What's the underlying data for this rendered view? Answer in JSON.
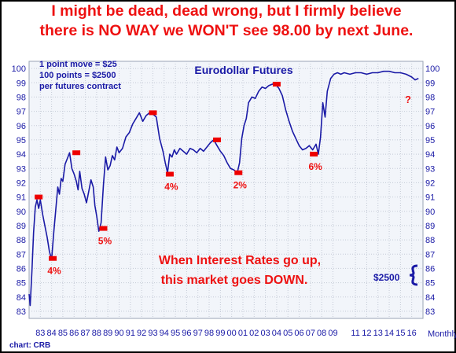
{
  "headline": {
    "line1": "I might be dead, dead wrong, but I firmly believe",
    "line2": "there is NO WAY we WON'T see 98.00 by next June."
  },
  "chart_data": {
    "type": "line",
    "title": "Eurodollar Futures",
    "notes": [
      "1 point move = $25",
      "100 points = $2500",
      "per futures contract"
    ],
    "annotation_main": [
      "When Interest Rates go up,",
      "this market goes  DOWN."
    ],
    "side_label": "$2500",
    "question_mark": "?",
    "source": "chart: CRB",
    "period_label": "Monthly",
    "ylim": [
      82.5,
      100.5
    ],
    "y_ticks": [
      83,
      84,
      85,
      86,
      87,
      88,
      89,
      90,
      91,
      92,
      93,
      94,
      95,
      96,
      97,
      98,
      99,
      100
    ],
    "xlim": [
      1982.0,
      2017.0
    ],
    "x_tick_labels": [
      {
        "x": 1983,
        "label": "83"
      },
      {
        "x": 1984,
        "label": "84"
      },
      {
        "x": 1985,
        "label": "85"
      },
      {
        "x": 1986,
        "label": "86"
      },
      {
        "x": 1987,
        "label": "87"
      },
      {
        "x": 1988,
        "label": "88"
      },
      {
        "x": 1989,
        "label": "89"
      },
      {
        "x": 1990,
        "label": "90"
      },
      {
        "x": 1991,
        "label": "91"
      },
      {
        "x": 1992,
        "label": "92"
      },
      {
        "x": 1993,
        "label": "93"
      },
      {
        "x": 1994,
        "label": "94"
      },
      {
        "x": 1995,
        "label": "95"
      },
      {
        "x": 1996,
        "label": "96"
      },
      {
        "x": 1997,
        "label": "97"
      },
      {
        "x": 1998,
        "label": "98"
      },
      {
        "x": 1999,
        "label": "99"
      },
      {
        "x": 2000,
        "label": "00"
      },
      {
        "x": 2001,
        "label": "01"
      },
      {
        "x": 2002,
        "label": "02"
      },
      {
        "x": 2003,
        "label": "03"
      },
      {
        "x": 2004,
        "label": "04"
      },
      {
        "x": 2005,
        "label": "05"
      },
      {
        "x": 2006,
        "label": "06"
      },
      {
        "x": 2007,
        "label": "07"
      },
      {
        "x": 2008,
        "label": "08"
      },
      {
        "x": 2009,
        "label": "09"
      },
      {
        "x": 2011,
        "label": "11"
      },
      {
        "x": 2012,
        "label": "12"
      },
      {
        "x": 2013,
        "label": "13"
      },
      {
        "x": 2014,
        "label": "14"
      },
      {
        "x": 2015,
        "label": "15"
      },
      {
        "x": 2016,
        "label": "16"
      }
    ],
    "series": [
      {
        "color": "#1a1aa6",
        "x": [
          1982.0,
          1982.1,
          1982.25,
          1982.4,
          1982.55,
          1982.7,
          1982.85,
          1983.0,
          1983.2,
          1983.4,
          1983.6,
          1983.8,
          1984.0,
          1984.2,
          1984.4,
          1984.55,
          1984.7,
          1984.85,
          1985.0,
          1985.2,
          1985.4,
          1985.6,
          1985.8,
          1986.0,
          1986.2,
          1986.35,
          1986.5,
          1986.7,
          1986.9,
          1987.1,
          1987.3,
          1987.5,
          1987.7,
          1987.85,
          1988.0,
          1988.2,
          1988.4,
          1988.6,
          1988.8,
          1989.0,
          1989.2,
          1989.4,
          1989.6,
          1989.8,
          1990.0,
          1990.3,
          1990.6,
          1990.9,
          1991.2,
          1991.5,
          1991.8,
          1992.1,
          1992.4,
          1992.7,
          1993.0,
          1993.3,
          1993.6,
          1993.9,
          1994.1,
          1994.3,
          1994.5,
          1994.7,
          1994.9,
          1995.1,
          1995.4,
          1995.7,
          1996.0,
          1996.3,
          1996.6,
          1996.9,
          1997.2,
          1997.5,
          1997.8,
          1998.1,
          1998.4,
          1998.7,
          1999.0,
          1999.3,
          1999.6,
          1999.9,
          2000.2,
          2000.5,
          2000.7,
          2000.9,
          2001.1,
          2001.3,
          2001.5,
          2001.8,
          2002.1,
          2002.4,
          2002.7,
          2003.0,
          2003.3,
          2003.6,
          2003.9,
          2004.2,
          2004.5,
          2004.8,
          2005.1,
          2005.4,
          2005.7,
          2006.0,
          2006.3,
          2006.6,
          2006.9,
          2007.2,
          2007.5,
          2007.7,
          2007.9,
          2008.1,
          2008.3,
          2008.5,
          2008.8,
          2009.1,
          2009.4,
          2009.7,
          2010.0,
          2010.5,
          2011.0,
          2011.5,
          2012.0,
          2012.5,
          2013.0,
          2013.5,
          2014.0,
          2014.5,
          2015.0,
          2015.5,
          2016.0,
          2016.3,
          2016.6
        ],
        "y": [
          84.2,
          83.4,
          85.8,
          88.5,
          90.3,
          90.8,
          90.2,
          90.8,
          89.8,
          89.0,
          88.2,
          87.2,
          86.6,
          88.6,
          90.4,
          91.7,
          91.2,
          92.3,
          92.1,
          93.3,
          93.7,
          94.1,
          93.0,
          92.6,
          92.1,
          91.5,
          92.8,
          91.6,
          91.2,
          90.6,
          91.4,
          92.2,
          91.7,
          90.4,
          89.7,
          88.6,
          89.2,
          91.8,
          93.8,
          92.9,
          93.2,
          93.9,
          93.6,
          94.5,
          94.1,
          94.4,
          95.2,
          95.5,
          96.1,
          96.5,
          96.9,
          96.3,
          96.7,
          96.9,
          96.8,
          96.6,
          95.1,
          94.2,
          93.4,
          92.7,
          94.0,
          93.8,
          94.3,
          94.0,
          94.4,
          94.2,
          94.0,
          94.4,
          94.3,
          94.1,
          94.4,
          94.2,
          94.5,
          94.8,
          95.0,
          94.6,
          94.2,
          93.9,
          93.4,
          93.0,
          92.9,
          92.7,
          93.4,
          95.1,
          96.0,
          96.5,
          97.6,
          98.0,
          97.9,
          98.4,
          98.7,
          98.6,
          98.8,
          98.9,
          98.9,
          98.6,
          98.1,
          97.1,
          96.3,
          95.6,
          95.1,
          94.6,
          94.3,
          94.4,
          94.6,
          94.3,
          94.7,
          94.0,
          95.2,
          97.6,
          96.6,
          98.4,
          99.3,
          99.6,
          99.7,
          99.6,
          99.7,
          99.6,
          99.7,
          99.7,
          99.6,
          99.7,
          99.7,
          99.8,
          99.8,
          99.7,
          99.7,
          99.6,
          99.4,
          99.2,
          99.3
        ]
      }
    ],
    "markers": [
      {
        "x": 1982.85,
        "y": 91.0,
        "label": ""
      },
      {
        "x": 1984.1,
        "y": 86.7,
        "label": "4%"
      },
      {
        "x": 1986.2,
        "y": 94.1,
        "label": ""
      },
      {
        "x": 1988.6,
        "y": 88.8,
        "label": "5%"
      },
      {
        "x": 1993.0,
        "y": 96.9,
        "label": ""
      },
      {
        "x": 1994.5,
        "y": 92.6,
        "label": "4%"
      },
      {
        "x": 1998.7,
        "y": 95.0,
        "label": ""
      },
      {
        "x": 2000.6,
        "y": 92.7,
        "label": "2%"
      },
      {
        "x": 2004.0,
        "y": 98.9,
        "label": ""
      },
      {
        "x": 2007.3,
        "y": 94.0,
        "label": "6%"
      }
    ]
  }
}
